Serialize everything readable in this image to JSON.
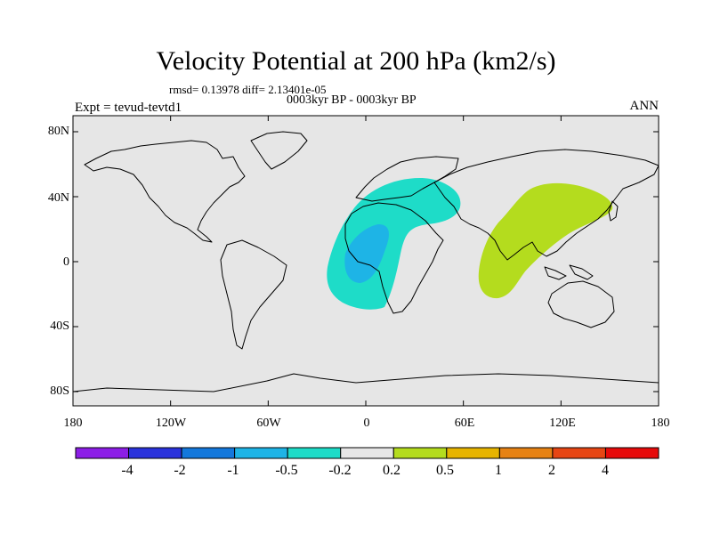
{
  "title": "Velocity Potential at 200 hPa (km2/s)",
  "stats": "rmsd= 0.13978 diff= 2.13401e-05",
  "period": "0003kyr BP - 0003kyr BP",
  "experiment": "Expt = tevud-tevtd1",
  "season": "ANN",
  "y_ticks": [
    "80N",
    "40N",
    "0",
    "40S",
    "80S"
  ],
  "x_ticks": [
    "180",
    "120W",
    "60W",
    "0",
    "60E",
    "120E",
    "180"
  ],
  "colorbar": {
    "colors": [
      "#8c1ee6",
      "#2a32dc",
      "#1478dc",
      "#1eb4e6",
      "#1edcc8",
      "#e6e6e6",
      "#b4dc1e",
      "#e6b400",
      "#e68214",
      "#e64614",
      "#e60a0a"
    ],
    "labels": [
      "-4",
      "-2",
      "-1",
      "-0.5",
      "-0.2",
      "0.2",
      "0.5",
      "1",
      "2",
      "4"
    ]
  },
  "colors": {
    "background": "#e6e6e6",
    "negative_anomaly": "#1edcc8",
    "strong_negative_anomaly": "#1eb4e6",
    "positive_anomaly": "#b4dc1e"
  }
}
